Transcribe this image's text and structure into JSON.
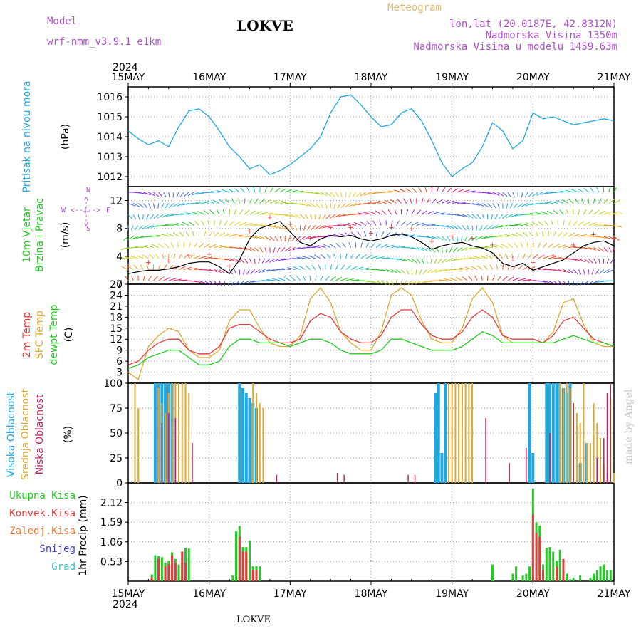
{
  "header": {
    "model_label": "Model",
    "model_name": "wrf-nmm_v3.9.1 e1km",
    "title": "LOKVE",
    "meteogram": "Meteogram",
    "lonlat": "lon,lat (20.0187E, 42.8312N)",
    "altitude": "Nadmorska Visina 1350m",
    "model_altitude": "Nadmorska Visina u modelu 1459.63m",
    "year": "2024",
    "footer_station": "LOKVE",
    "watermark": "made by Angel"
  },
  "colors": {
    "pressure": "#1ea7e6",
    "wind": "#22cc22",
    "temp2m": "#e83a3a",
    "sfc": "#e0a830",
    "dew": "#22cc22",
    "cloud_high": "#1ea7e6",
    "cloud_mid": "#e0a830",
    "cloud_low": "#c02060",
    "precip_total": "#22cc22",
    "precip_conv": "#e83a3a",
    "precip_frz": "#f07830",
    "snow": "#4040e0",
    "graupel": "#30c0c0",
    "model": "#b050d0"
  },
  "time_axis": {
    "top_labels": [
      "15MAY",
      "16MAY",
      "17MAY",
      "18MAY",
      "19MAY",
      "20MAY",
      "21MAY"
    ],
    "bottom_labels": [
      "15MAY",
      "16MAY",
      "17MAY",
      "18MAY",
      "19MAY",
      "20MAY",
      "21MAY"
    ],
    "year": "2024"
  },
  "panel_labels": {
    "pressure": [
      "Pritisak na nivou mora",
      "(hPa)"
    ],
    "wind": [
      "10m Vjetar",
      "Brzina i Pravac",
      "(m/s)"
    ],
    "compass": {
      "n": "N",
      "s": "S",
      "e": "E",
      "w": "W",
      "arrows": "<--|-->",
      "vert_arrows": "<--|-->"
    },
    "temp": [
      "2m Temp",
      "SFC Temp",
      "dewpt Temp",
      "(C)"
    ],
    "cloud": [
      "Visoka Oblacnost",
      "Srednja Oblacnost",
      "Niska Oblacnost",
      "(%)"
    ],
    "precip_legend": [
      "Ukupna Kisa",
      "Konvek.Kisa",
      "Zaledj.Kisa",
      "Snijeg",
      "Grad"
    ],
    "precip_axis": "1hr Precip (mm)"
  },
  "chart_data": [
    {
      "type": "line",
      "panel": "pressure",
      "ylabel": "(hPa)",
      "ylim": [
        1011.5,
        1016.5
      ],
      "yticks": [
        1012,
        1013,
        1014,
        1015,
        1016
      ],
      "x": [
        0,
        3,
        6,
        9,
        12,
        15,
        18,
        21,
        24,
        27,
        30,
        33,
        36,
        39,
        42,
        45,
        48,
        51,
        54,
        57,
        60,
        63,
        66,
        69,
        72,
        75,
        78,
        81,
        84,
        87,
        90,
        93,
        96,
        99,
        102,
        105,
        108,
        111,
        114,
        117,
        120,
        123,
        126,
        129,
        132,
        135,
        138,
        141,
        144
      ],
      "series": [
        {
          "name": "Pritisak na nivou mora",
          "values": [
            1014.3,
            1013.9,
            1013.6,
            1013.8,
            1013.5,
            1014.5,
            1015.3,
            1015.4,
            1015.0,
            1014.3,
            1013.5,
            1013.0,
            1012.4,
            1012.6,
            1012.1,
            1012.3,
            1012.6,
            1013.0,
            1013.4,
            1014.0,
            1015.2,
            1016.0,
            1016.1,
            1015.6,
            1015.0,
            1014.5,
            1014.6,
            1015.2,
            1015.4,
            1014.8,
            1013.8,
            1012.7,
            1012.0,
            1012.4,
            1012.7,
            1013.5,
            1014.7,
            1014.3,
            1013.4,
            1013.8,
            1015.2,
            1014.9,
            1015.0,
            1014.8,
            1014.6,
            1014.7,
            1014.8,
            1014.9,
            1014.8
          ]
        }
      ]
    },
    {
      "type": "line",
      "panel": "wind",
      "ylabel": "(m/s)",
      "ylim": [
        0,
        14
      ],
      "yticks": [
        0,
        4,
        8,
        12
      ],
      "x": [
        0,
        3,
        6,
        9,
        12,
        15,
        18,
        21,
        24,
        27,
        30,
        33,
        36,
        39,
        42,
        45,
        48,
        51,
        54,
        57,
        60,
        63,
        66,
        69,
        72,
        75,
        78,
        81,
        84,
        87,
        90,
        93,
        96,
        99,
        102,
        105,
        108,
        111,
        114,
        117,
        120,
        123,
        126,
        129,
        132,
        135,
        138,
        141,
        144
      ],
      "series": [
        {
          "name": "Brzina",
          "values": [
            1.5,
            1.8,
            2.0,
            2.0,
            2.2,
            2.5,
            3.0,
            3.2,
            3.2,
            2.5,
            1.5,
            3.5,
            6.5,
            8.0,
            8.5,
            9.0,
            7.5,
            6.0,
            5.5,
            6.5,
            7.0,
            6.8,
            7.0,
            6.5,
            6.2,
            6.5,
            7.0,
            7.2,
            6.8,
            6.0,
            5.0,
            5.5,
            5.8,
            6.0,
            5.5,
            5.2,
            4.5,
            3.0,
            2.5,
            3.0,
            2.0,
            2.5,
            3.0,
            3.5,
            4.5,
            5.5,
            6.0,
            6.2,
            5.5
          ]
        }
      ]
    },
    {
      "type": "line",
      "panel": "temperature",
      "ylabel": "(C)",
      "ylim": [
        0,
        27
      ],
      "yticks": [
        0,
        3,
        6,
        9,
        12,
        15,
        18,
        21,
        24,
        27
      ],
      "x": [
        0,
        3,
        6,
        9,
        12,
        15,
        18,
        21,
        24,
        27,
        30,
        33,
        36,
        39,
        42,
        45,
        48,
        51,
        54,
        57,
        60,
        63,
        66,
        69,
        72,
        75,
        78,
        81,
        84,
        87,
        90,
        93,
        96,
        99,
        102,
        105,
        108,
        111,
        114,
        117,
        120,
        123,
        126,
        129,
        132,
        135,
        138,
        141,
        144
      ],
      "series": [
        {
          "name": "2m Temp",
          "values": [
            5,
            6,
            9,
            11,
            12,
            12,
            9,
            8,
            8,
            10,
            15,
            16,
            16,
            14,
            12,
            11,
            11,
            12,
            17,
            19,
            18,
            14,
            12,
            11,
            11,
            13,
            18,
            20,
            20,
            16,
            13,
            12,
            12,
            14,
            18,
            20,
            18,
            13,
            12,
            12,
            12,
            11,
            13,
            17,
            18,
            15,
            12,
            11,
            10
          ]
        },
        {
          "name": "SFC Temp",
          "values": [
            3,
            1,
            10,
            13,
            15,
            14,
            9,
            7,
            7,
            9,
            17,
            20,
            20,
            15,
            11,
            10,
            10,
            13,
            23,
            26,
            22,
            14,
            11,
            9,
            9,
            14,
            24,
            26,
            24,
            17,
            12,
            11,
            11,
            15,
            23,
            26,
            22,
            13,
            11,
            11,
            11,
            11,
            14,
            22,
            23,
            16,
            11,
            10,
            10
          ]
        },
        {
          "name": "dewpt Temp",
          "values": [
            4,
            5,
            7,
            8,
            9,
            9,
            7,
            5,
            5,
            6,
            10,
            12,
            12,
            11,
            11,
            11,
            10,
            11,
            12,
            12,
            11,
            9,
            8,
            8,
            8,
            9,
            12,
            12,
            11,
            10,
            9,
            9,
            9,
            10,
            12,
            14,
            13,
            11,
            11,
            11,
            11,
            11,
            11,
            12,
            13,
            12,
            11,
            11,
            10
          ]
        }
      ]
    },
    {
      "type": "bar",
      "panel": "cloud",
      "ylabel": "(%)",
      "ylim": [
        0,
        100
      ],
      "yticks": [
        0,
        25,
        50,
        75,
        100
      ],
      "series": [
        {
          "name": "Visoka Oblacnost",
          "x": [
            8,
            9,
            10,
            11,
            12,
            13,
            33,
            34,
            35,
            36,
            37,
            38,
            91,
            92,
            93,
            94,
            119,
            120,
            124,
            125,
            126,
            127,
            128,
            129,
            130,
            131,
            134,
            136
          ],
          "values": [
            100,
            100,
            100,
            100,
            100,
            100,
            100,
            95,
            90,
            85,
            80,
            75,
            90,
            100,
            30,
            100,
            100,
            30,
            100,
            100,
            100,
            100,
            100,
            95,
            90,
            100,
            20,
            40
          ]
        },
        {
          "name": "Srednja Oblacnost",
          "x": [
            2,
            3,
            9,
            10,
            11,
            12,
            13,
            14,
            15,
            16,
            17,
            18,
            37,
            38,
            39,
            40,
            95,
            96,
            97,
            98,
            99,
            100,
            101,
            102,
            128,
            129,
            130,
            131,
            132,
            133,
            134,
            135,
            136,
            137,
            138,
            139,
            140,
            141,
            142,
            143,
            144
          ],
          "values": [
            100,
            75,
            95,
            80,
            70,
            90,
            100,
            100,
            100,
            100,
            100,
            90,
            100,
            90,
            80,
            75,
            100,
            100,
            100,
            100,
            100,
            100,
            100,
            100,
            100,
            95,
            100,
            95,
            80,
            70,
            60,
            100,
            40,
            40,
            80,
            60,
            45,
            20,
            10,
            85,
            10
          ]
        },
        {
          "name": "Niska Oblacnost",
          "x": [
            10,
            12,
            14,
            19,
            44,
            62,
            64,
            83,
            85,
            106,
            113,
            118,
            125,
            132,
            139,
            141,
            142,
            143
          ],
          "values": [
            60,
            70,
            65,
            40,
            8,
            10,
            8,
            8,
            8,
            65,
            20,
            35,
            50,
            80,
            25,
            45,
            90,
            100
          ]
        }
      ]
    },
    {
      "type": "bar",
      "panel": "precipitation",
      "ylabel": "1hr Precip (mm)",
      "ylim": [
        0,
        2.65
      ],
      "yticks": [
        0.53,
        1.06,
        1.59,
        2.12
      ],
      "series": [
        {
          "name": "Ukupna Kisa",
          "x": [
            7,
            8,
            9,
            10,
            11,
            12,
            13,
            14,
            15,
            16,
            17,
            18,
            31,
            32,
            33,
            34,
            35,
            36,
            37,
            38,
            39,
            108,
            114,
            115,
            117,
            118,
            119,
            120,
            121,
            122,
            123,
            124,
            125,
            126,
            127,
            128,
            129,
            130,
            131,
            132,
            134,
            137,
            138,
            139,
            140,
            141,
            142,
            143
          ],
          "values": [
            0.18,
            0.7,
            0.68,
            0.65,
            0.5,
            0.55,
            0.78,
            0.6,
            0.45,
            0.5,
            0.9,
            0.88,
            0.15,
            1.35,
            1.49,
            0.92,
            0.92,
            1.1,
            0.4,
            0.4,
            0.4,
            0.45,
            0.2,
            0.4,
            0.15,
            0.2,
            0.4,
            2.5,
            1.59,
            1.5,
            0.45,
            0.9,
            0.92,
            0.8,
            0.55,
            0.85,
            0.3,
            0.2,
            0.05,
            0.1,
            0.15,
            0.1,
            0.2,
            0.3,
            0.4,
            0.45,
            0.3,
            0.3
          ]
        },
        {
          "name": "Konvek.Kisa",
          "x": [
            7,
            9,
            11,
            12,
            13,
            14,
            16,
            17,
            33,
            34,
            35,
            37,
            38,
            120,
            121,
            122,
            123,
            127,
            129
          ],
          "values": [
            0.1,
            0.6,
            0.4,
            0.45,
            0.7,
            0.5,
            0.8,
            0.5,
            1.2,
            0.8,
            0.8,
            0.3,
            0.3,
            1.8,
            1.3,
            1.2,
            0.3,
            0.4,
            0.6
          ]
        }
      ]
    }
  ]
}
